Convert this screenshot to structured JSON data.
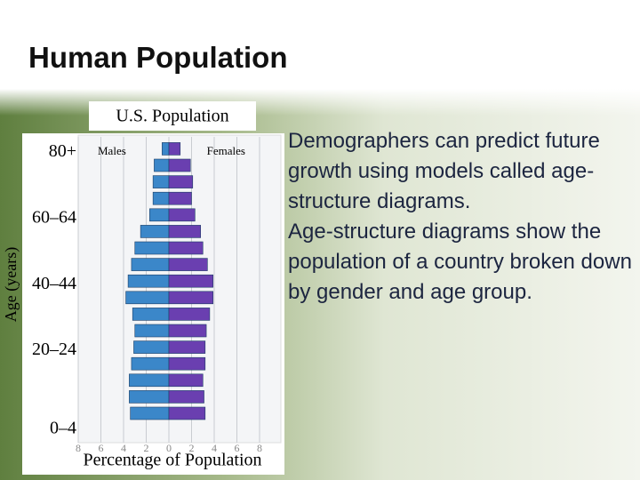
{
  "title": "Human Population",
  "paragraphs": [
    "Demographers can predict future growth using models called age-structure diagrams.",
    "Age-structure diagrams show the population of a country broken down by gender and age group."
  ],
  "chart_data": {
    "type": "bar",
    "title": "U.S. Population",
    "xlabel": "Percentage of Population",
    "ylabel": "Age (years)",
    "categories": [
      "0–4",
      null,
      null,
      null,
      "20–24",
      null,
      null,
      null,
      "40–44",
      null,
      null,
      null,
      "60–64",
      null,
      null,
      null,
      "80+"
    ],
    "series": [
      {
        "name": "Males",
        "color": "#3b87c9",
        "values": [
          3.4,
          3.5,
          3.5,
          3.3,
          3.1,
          3.0,
          3.2,
          3.8,
          3.6,
          3.3,
          3.0,
          2.5,
          1.7,
          1.4,
          1.4,
          1.3,
          0.6
        ]
      },
      {
        "name": "Females",
        "color": "#6a3fb0",
        "values": [
          3.2,
          3.1,
          3.0,
          3.2,
          3.2,
          3.3,
          3.6,
          3.9,
          3.9,
          3.4,
          3.0,
          2.8,
          2.3,
          2.0,
          2.1,
          1.9,
          1.0
        ]
      }
    ],
    "xlim": [
      -8,
      8
    ],
    "xticks": [
      {
        "value": -8,
        "label": "8"
      },
      {
        "value": -6,
        "label": "6"
      },
      {
        "value": -4,
        "label": "4"
      },
      {
        "value": -2,
        "label": "2"
      },
      0,
      2,
      4,
      6,
      8
    ],
    "grid": true
  }
}
